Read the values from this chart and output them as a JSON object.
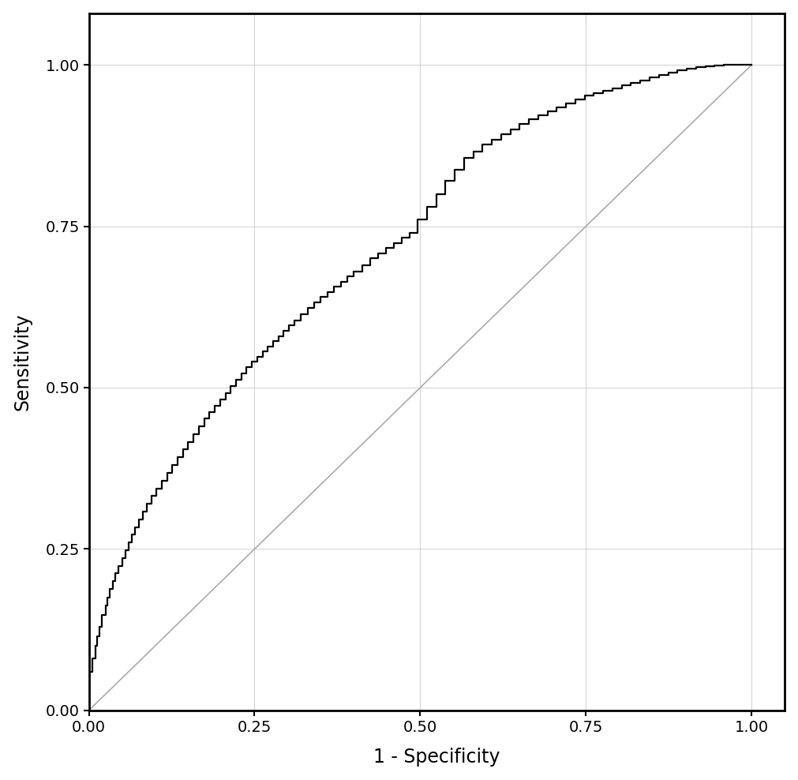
{
  "xlabel": "1 - Specificity",
  "ylabel": "Sensitivity",
  "xlim": [
    0.0,
    1.05
  ],
  "ylim": [
    0.0,
    1.08
  ],
  "xticks": [
    0.0,
    0.25,
    0.5,
    0.75,
    1.0
  ],
  "yticks": [
    0.0,
    0.25,
    0.5,
    0.75,
    1.0
  ],
  "xtick_labels": [
    "0.00",
    "0.25",
    "0.50",
    "0.75",
    "1.00"
  ],
  "ytick_labels": [
    "0.00",
    "0.25",
    "0.50",
    "0.75",
    "1.00"
  ],
  "roc_color": "#000000",
  "diagonal_color": "#aaaaaa",
  "grid_color": "#d0d0d0",
  "background_color": "#ffffff",
  "roc_linewidth": 1.6,
  "diagonal_linewidth": 1.2,
  "xlabel_fontsize": 17,
  "ylabel_fontsize": 17,
  "tick_fontsize": 14,
  "grid_linewidth": 0.7,
  "fpr": [
    0.0,
    0.0,
    0.005,
    0.005,
    0.01,
    0.01,
    0.013,
    0.013,
    0.016,
    0.016,
    0.02,
    0.02,
    0.025,
    0.025,
    0.028,
    0.028,
    0.032,
    0.032,
    0.036,
    0.036,
    0.04,
    0.04,
    0.045,
    0.045,
    0.05,
    0.05,
    0.055,
    0.055,
    0.06,
    0.06,
    0.065,
    0.065,
    0.07,
    0.07,
    0.076,
    0.076,
    0.082,
    0.082,
    0.088,
    0.088,
    0.095,
    0.095,
    0.102,
    0.102,
    0.11,
    0.11,
    0.118,
    0.118,
    0.126,
    0.126,
    0.134,
    0.134,
    0.142,
    0.142,
    0.15,
    0.15,
    0.158,
    0.158,
    0.166,
    0.166,
    0.174,
    0.174,
    0.182,
    0.182,
    0.19,
    0.19,
    0.198,
    0.198,
    0.206,
    0.206,
    0.214,
    0.214,
    0.222,
    0.222,
    0.23,
    0.23,
    0.238,
    0.238,
    0.246,
    0.246,
    0.254,
    0.254,
    0.262,
    0.262,
    0.27,
    0.27,
    0.278,
    0.278,
    0.286,
    0.286,
    0.294,
    0.294,
    0.302,
    0.302,
    0.31,
    0.31,
    0.32,
    0.32,
    0.33,
    0.33,
    0.34,
    0.34,
    0.35,
    0.35,
    0.36,
    0.36,
    0.37,
    0.37,
    0.38,
    0.38,
    0.39,
    0.39,
    0.4,
    0.4,
    0.412,
    0.412,
    0.424,
    0.424,
    0.436,
    0.436,
    0.448,
    0.448,
    0.46,
    0.46,
    0.472,
    0.472,
    0.484,
    0.484,
    0.496,
    0.496,
    0.51,
    0.51,
    0.524,
    0.524,
    0.538,
    0.538,
    0.552,
    0.552,
    0.566,
    0.566,
    0.58,
    0.58,
    0.594,
    0.594,
    0.608,
    0.608,
    0.622,
    0.622,
    0.636,
    0.636,
    0.65,
    0.65,
    0.664,
    0.664,
    0.678,
    0.678,
    0.692,
    0.692,
    0.706,
    0.706,
    0.72,
    0.72,
    0.734,
    0.734,
    0.748,
    0.748,
    0.762,
    0.762,
    0.776,
    0.776,
    0.79,
    0.79,
    0.804,
    0.804,
    0.818,
    0.818,
    0.832,
    0.832,
    0.846,
    0.846,
    0.86,
    0.86,
    0.874,
    0.874,
    0.888,
    0.888,
    0.902,
    0.902,
    0.916,
    0.916,
    0.93,
    0.93,
    0.944,
    0.944,
    0.958,
    0.958,
    0.972,
    0.972,
    0.986,
    0.986,
    1.0
  ],
  "tpr": [
    0.0,
    0.06,
    0.06,
    0.08,
    0.08,
    0.1,
    0.1,
    0.115,
    0.115,
    0.13,
    0.13,
    0.148,
    0.148,
    0.162,
    0.162,
    0.175,
    0.175,
    0.188,
    0.188,
    0.2,
    0.2,
    0.212,
    0.212,
    0.224,
    0.224,
    0.236,
    0.236,
    0.248,
    0.248,
    0.26,
    0.26,
    0.272,
    0.272,
    0.284,
    0.284,
    0.296,
    0.296,
    0.308,
    0.308,
    0.32,
    0.32,
    0.332,
    0.332,
    0.344,
    0.344,
    0.356,
    0.356,
    0.368,
    0.368,
    0.38,
    0.38,
    0.392,
    0.392,
    0.404,
    0.404,
    0.416,
    0.416,
    0.428,
    0.428,
    0.44,
    0.44,
    0.452,
    0.452,
    0.462,
    0.462,
    0.472,
    0.472,
    0.482,
    0.482,
    0.492,
    0.492,
    0.502,
    0.502,
    0.512,
    0.512,
    0.522,
    0.522,
    0.532,
    0.532,
    0.54,
    0.54,
    0.548,
    0.548,
    0.556,
    0.556,
    0.564,
    0.564,
    0.572,
    0.572,
    0.58,
    0.58,
    0.588,
    0.588,
    0.596,
    0.596,
    0.604,
    0.604,
    0.614,
    0.614,
    0.624,
    0.624,
    0.632,
    0.632,
    0.64,
    0.64,
    0.648,
    0.648,
    0.656,
    0.656,
    0.664,
    0.664,
    0.672,
    0.672,
    0.68,
    0.68,
    0.69,
    0.69,
    0.7,
    0.7,
    0.708,
    0.708,
    0.716,
    0.716,
    0.724,
    0.724,
    0.732,
    0.732,
    0.74,
    0.74,
    0.76,
    0.76,
    0.78,
    0.78,
    0.8,
    0.8,
    0.82,
    0.82,
    0.838,
    0.838,
    0.856,
    0.856,
    0.866,
    0.866,
    0.876,
    0.876,
    0.884,
    0.884,
    0.892,
    0.892,
    0.9,
    0.9,
    0.908,
    0.908,
    0.916,
    0.916,
    0.922,
    0.922,
    0.928,
    0.928,
    0.934,
    0.934,
    0.94,
    0.94,
    0.946,
    0.946,
    0.952,
    0.952,
    0.956,
    0.956,
    0.96,
    0.96,
    0.964,
    0.964,
    0.968,
    0.968,
    0.972,
    0.972,
    0.976,
    0.976,
    0.98,
    0.98,
    0.984,
    0.984,
    0.988,
    0.988,
    0.992,
    0.992,
    0.994,
    0.994,
    0.996,
    0.996,
    0.998,
    0.998,
    0.999,
    0.999,
    1.0,
    1.0,
    1.0,
    1.0,
    1.0,
    1.0
  ]
}
